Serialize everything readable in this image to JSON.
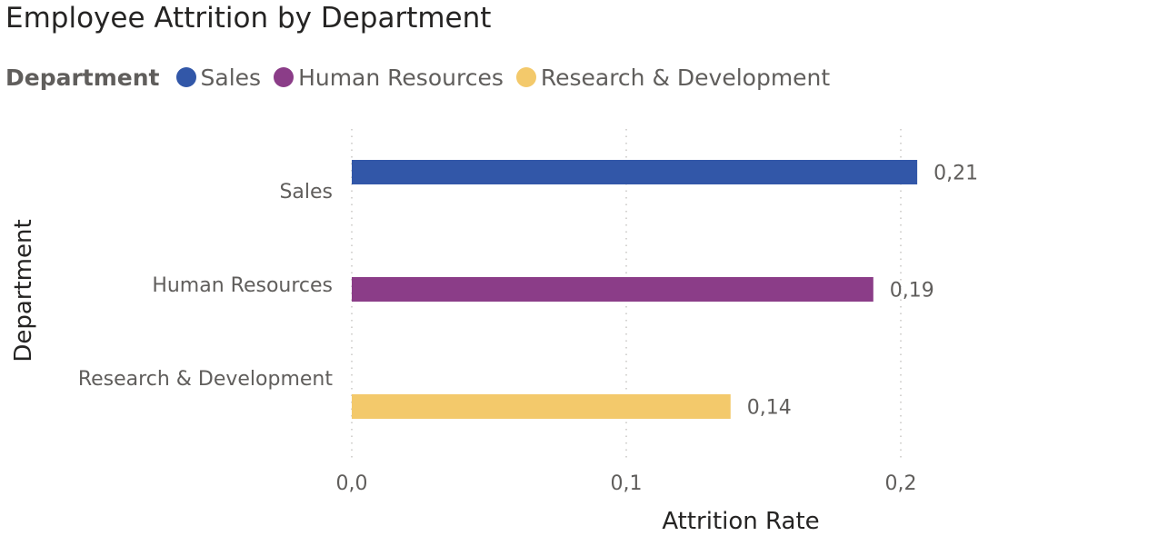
{
  "title": "Employee Attrition by Department",
  "legend": {
    "title": "Department",
    "items": [
      {
        "label": "Sales",
        "color": "#3257A8"
      },
      {
        "label": "Human Resources",
        "color": "#8B3D88"
      },
      {
        "label": "Research & Development",
        "color": "#F3C96B"
      }
    ]
  },
  "chart_data": {
    "type": "bar",
    "orientation": "horizontal",
    "title": "Employee Attrition by Department",
    "xlabel": "Attrition Rate",
    "ylabel": "Department",
    "categories": [
      "Sales",
      "Human Resources",
      "Research & Development"
    ],
    "values": [
      0.206,
      0.19,
      0.138
    ],
    "data_labels": [
      "0,21",
      "0,19",
      "0,14"
    ],
    "colors": [
      "#3257A8",
      "#8B3D88",
      "#F3C96B"
    ],
    "xlim": [
      0,
      0.2
    ],
    "xticks": [
      0.0,
      0.1,
      0.2
    ],
    "xtick_labels": [
      "0,0",
      "0,1",
      "0,2"
    ],
    "grid": "vertical dotted",
    "legend_position": "top-left"
  }
}
